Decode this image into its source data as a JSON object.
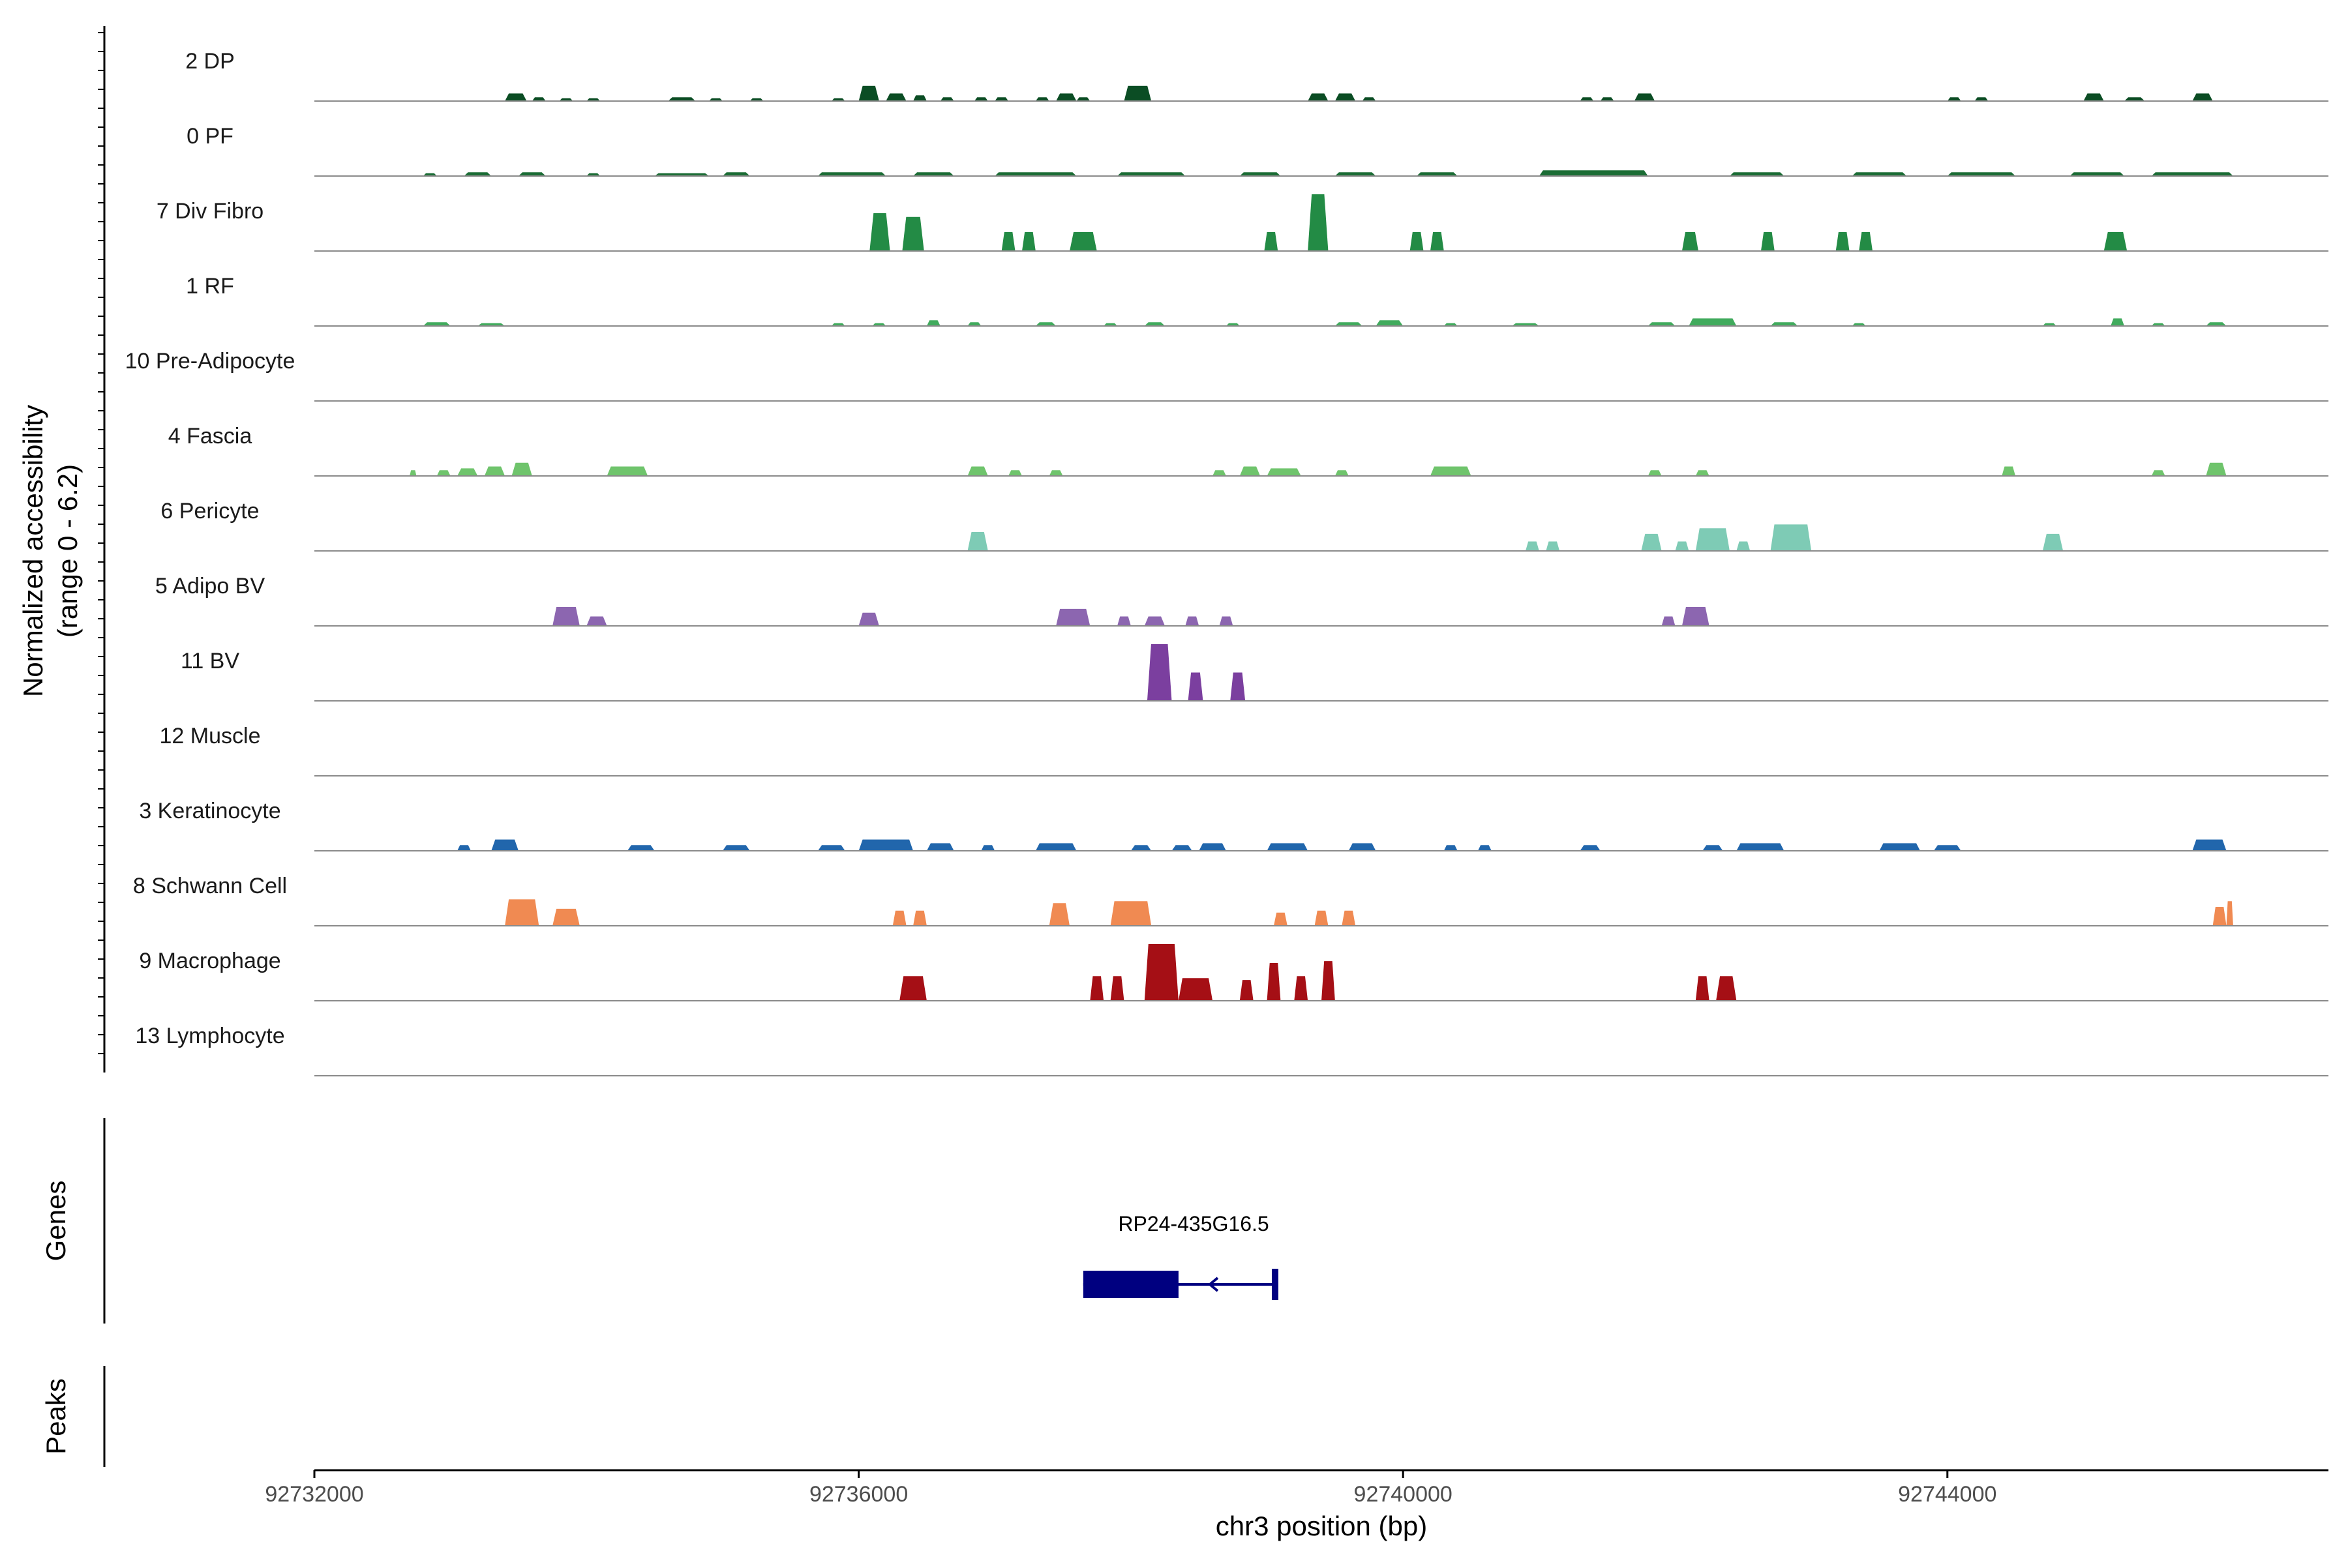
{
  "chart_data": {
    "type": "area",
    "x_axis": {
      "label": "chr3 position (bp)",
      "range": [
        92732000,
        92746800
      ],
      "ticks": [
        92732000,
        92736000,
        92740000,
        92744000
      ],
      "tick_labels": [
        "92732000",
        "92736000",
        "92740000",
        "92744000"
      ]
    },
    "y_axis": {
      "label_line1": "Normalized accessibility",
      "label_line2": "(range 0 - 6.2)",
      "range": [
        0,
        6.2
      ]
    },
    "tracks": [
      {
        "name": "2 DP",
        "color": "#0b4d24",
        "peaks": [
          [
            92733400,
            92733560,
            0.4
          ],
          [
            92733600,
            92733700,
            0.2
          ],
          [
            92733800,
            92733900,
            0.15
          ],
          [
            92734000,
            92734100,
            0.15
          ],
          [
            92734600,
            92734800,
            0.2
          ],
          [
            92734900,
            92735000,
            0.15
          ],
          [
            92735200,
            92735300,
            0.15
          ],
          [
            92735800,
            92735900,
            0.15
          ],
          [
            92736000,
            92736150,
            0.8
          ],
          [
            92736200,
            92736350,
            0.4
          ],
          [
            92736400,
            92736500,
            0.3
          ],
          [
            92736600,
            92736700,
            0.2
          ],
          [
            92736850,
            92736950,
            0.2
          ],
          [
            92737000,
            92737100,
            0.2
          ],
          [
            92737300,
            92737400,
            0.2
          ],
          [
            92737450,
            92737600,
            0.4
          ],
          [
            92737600,
            92737700,
            0.2
          ],
          [
            92737950,
            92738150,
            0.8
          ],
          [
            92739300,
            92739450,
            0.4
          ],
          [
            92739500,
            92739650,
            0.4
          ],
          [
            92739700,
            92739800,
            0.2
          ],
          [
            92741300,
            92741400,
            0.2
          ],
          [
            92741450,
            92741550,
            0.2
          ],
          [
            92741700,
            92741850,
            0.4
          ],
          [
            92744000,
            92744100,
            0.2
          ],
          [
            92744200,
            92744300,
            0.2
          ],
          [
            92745000,
            92745150,
            0.4
          ],
          [
            92745300,
            92745450,
            0.2
          ],
          [
            92745800,
            92745950,
            0.4
          ]
        ]
      },
      {
        "name": "0 PF",
        "color": "#1b6d35",
        "peaks": [
          [
            92732800,
            92732900,
            0.15
          ],
          [
            92733100,
            92733300,
            0.2
          ],
          [
            92733500,
            92733700,
            0.2
          ],
          [
            92734000,
            92734100,
            0.15
          ],
          [
            92734500,
            92734900,
            0.15
          ],
          [
            92735000,
            92735200,
            0.2
          ],
          [
            92735700,
            92736200,
            0.2
          ],
          [
            92736400,
            92736700,
            0.2
          ],
          [
            92737000,
            92737600,
            0.2
          ],
          [
            92737900,
            92738400,
            0.2
          ],
          [
            92738800,
            92739100,
            0.2
          ],
          [
            92739500,
            92739800,
            0.2
          ],
          [
            92740100,
            92740400,
            0.2
          ],
          [
            92741000,
            92741800,
            0.3
          ],
          [
            92742400,
            92742800,
            0.2
          ],
          [
            92743300,
            92743700,
            0.2
          ],
          [
            92744000,
            92744500,
            0.2
          ],
          [
            92744900,
            92745300,
            0.2
          ],
          [
            92745500,
            92746100,
            0.2
          ]
        ]
      },
      {
        "name": "7 Div Fibro",
        "color": "#238b45",
        "peaks": [
          [
            92736080,
            92736230,
            2.0
          ],
          [
            92736320,
            92736480,
            1.8
          ],
          [
            92737050,
            92737150,
            1.0
          ],
          [
            92737200,
            92737300,
            1.0
          ],
          [
            92737550,
            92737750,
            1.0
          ],
          [
            92738980,
            92739080,
            1.0
          ],
          [
            92739300,
            92739450,
            3.0
          ],
          [
            92740050,
            92740150,
            1.0
          ],
          [
            92740200,
            92740300,
            1.0
          ],
          [
            92742050,
            92742170,
            1.0
          ],
          [
            92742630,
            92742730,
            1.0
          ],
          [
            92743180,
            92743280,
            1.0
          ],
          [
            92743350,
            92743450,
            1.0
          ],
          [
            92745150,
            92745320,
            1.0
          ]
        ]
      },
      {
        "name": "1 RF",
        "color": "#41ab5d",
        "peaks": [
          [
            92732800,
            92733000,
            0.2
          ],
          [
            92733200,
            92733400,
            0.15
          ],
          [
            92735800,
            92735900,
            0.15
          ],
          [
            92736100,
            92736200,
            0.15
          ],
          [
            92736500,
            92736600,
            0.3
          ],
          [
            92736800,
            92736900,
            0.2
          ],
          [
            92737300,
            92737450,
            0.2
          ],
          [
            92737800,
            92737900,
            0.15
          ],
          [
            92738100,
            92738250,
            0.2
          ],
          [
            92738700,
            92738800,
            0.15
          ],
          [
            92739500,
            92739700,
            0.2
          ],
          [
            92739800,
            92740000,
            0.3
          ],
          [
            92740300,
            92740400,
            0.15
          ],
          [
            92740800,
            92741000,
            0.15
          ],
          [
            92741800,
            92742000,
            0.2
          ],
          [
            92742100,
            92742450,
            0.4
          ],
          [
            92742700,
            92742900,
            0.2
          ],
          [
            92743300,
            92743400,
            0.15
          ],
          [
            92744700,
            92744800,
            0.15
          ],
          [
            92745200,
            92745300,
            0.4
          ],
          [
            92745500,
            92745600,
            0.15
          ],
          [
            92745900,
            92746050,
            0.2
          ]
        ]
      },
      {
        "name": "10 Pre-Adipocyte",
        "color": "#4fb35f",
        "peaks": []
      },
      {
        "name": "4 Fascia",
        "color": "#6fc46c",
        "peaks": [
          [
            92732700,
            92732750,
            0.3
          ],
          [
            92732900,
            92733000,
            0.3
          ],
          [
            92733050,
            92733200,
            0.4
          ],
          [
            92733250,
            92733400,
            0.5
          ],
          [
            92733450,
            92733600,
            0.7
          ],
          [
            92734150,
            92734450,
            0.5
          ],
          [
            92736800,
            92736950,
            0.5
          ],
          [
            92737100,
            92737200,
            0.3
          ],
          [
            92737400,
            92737500,
            0.3
          ],
          [
            92738600,
            92738700,
            0.3
          ],
          [
            92738800,
            92738950,
            0.5
          ],
          [
            92739000,
            92739250,
            0.4
          ],
          [
            92739500,
            92739600,
            0.3
          ],
          [
            92740200,
            92740500,
            0.5
          ],
          [
            92741800,
            92741900,
            0.3
          ],
          [
            92742150,
            92742250,
            0.3
          ],
          [
            92744400,
            92744500,
            0.5
          ],
          [
            92745500,
            92745600,
            0.3
          ],
          [
            92745900,
            92746050,
            0.7
          ]
        ]
      },
      {
        "name": "6 Pericyte",
        "color": "#7ecbb5",
        "peaks": [
          [
            92736800,
            92736950,
            1.0
          ],
          [
            92740900,
            92741000,
            0.5
          ],
          [
            92741050,
            92741150,
            0.5
          ],
          [
            92741750,
            92741900,
            0.9
          ],
          [
            92742000,
            92742100,
            0.5
          ],
          [
            92742150,
            92742400,
            1.2
          ],
          [
            92742450,
            92742550,
            0.5
          ],
          [
            92742700,
            92743000,
            1.4
          ],
          [
            92744700,
            92744850,
            0.9
          ]
        ]
      },
      {
        "name": "5 Adipo BV",
        "color": "#8c66b0",
        "peaks": [
          [
            92733750,
            92733950,
            1.0
          ],
          [
            92734000,
            92734150,
            0.5
          ],
          [
            92736000,
            92736150,
            0.7
          ],
          [
            92737450,
            92737700,
            0.9
          ],
          [
            92737900,
            92738000,
            0.5
          ],
          [
            92738100,
            92738250,
            0.5
          ],
          [
            92738400,
            92738500,
            0.5
          ],
          [
            92738650,
            92738750,
            0.5
          ],
          [
            92741900,
            92742000,
            0.5
          ],
          [
            92742050,
            92742250,
            1.0
          ]
        ]
      },
      {
        "name": "11 BV",
        "color": "#7b3f9f",
        "peaks": [
          [
            92738120,
            92738300,
            3.0
          ],
          [
            92738420,
            92738530,
            1.5
          ],
          [
            92738730,
            92738840,
            1.5
          ]
        ]
      },
      {
        "name": "12 Muscle",
        "color": "#6a51a3",
        "peaks": []
      },
      {
        "name": "3 Keratinocyte",
        "color": "#2166ac",
        "peaks": [
          [
            92733050,
            92733150,
            0.3
          ],
          [
            92733300,
            92733500,
            0.6
          ],
          [
            92734300,
            92734500,
            0.3
          ],
          [
            92735000,
            92735200,
            0.3
          ],
          [
            92735700,
            92735900,
            0.3
          ],
          [
            92736000,
            92736400,
            0.6
          ],
          [
            92736500,
            92736700,
            0.4
          ],
          [
            92736900,
            92737000,
            0.3
          ],
          [
            92737300,
            92737600,
            0.4
          ],
          [
            92738000,
            92738150,
            0.3
          ],
          [
            92738300,
            92738450,
            0.3
          ],
          [
            92738500,
            92738700,
            0.4
          ],
          [
            92739000,
            92739300,
            0.4
          ],
          [
            92739600,
            92739800,
            0.4
          ],
          [
            92740300,
            92740400,
            0.3
          ],
          [
            92740550,
            92740650,
            0.3
          ],
          [
            92741300,
            92741450,
            0.3
          ],
          [
            92742200,
            92742350,
            0.3
          ],
          [
            92742450,
            92742800,
            0.4
          ],
          [
            92743500,
            92743800,
            0.4
          ],
          [
            92743900,
            92744100,
            0.3
          ],
          [
            92745800,
            92746050,
            0.6
          ]
        ]
      },
      {
        "name": "8 Schwann Cell",
        "color": "#f08a52",
        "peaks": [
          [
            92733400,
            92733650,
            1.4
          ],
          [
            92733750,
            92733950,
            0.9
          ],
          [
            92736250,
            92736350,
            0.8
          ],
          [
            92736400,
            92736500,
            0.8
          ],
          [
            92737400,
            92737550,
            1.2
          ],
          [
            92737850,
            92738150,
            1.3
          ],
          [
            92739050,
            92739150,
            0.7
          ],
          [
            92739350,
            92739450,
            0.8
          ],
          [
            92739550,
            92739650,
            0.8
          ],
          [
            92745950,
            92746050,
            1.0
          ],
          [
            92746050,
            92746100,
            1.3
          ]
        ]
      },
      {
        "name": "9 Macrophage",
        "color": "#a50f15",
        "peaks": [
          [
            92736300,
            92736500,
            1.3
          ],
          [
            92737700,
            92737800,
            1.3
          ],
          [
            92737850,
            92737950,
            1.3
          ],
          [
            92738100,
            92738350,
            3.0
          ],
          [
            92738350,
            92738600,
            1.2
          ],
          [
            92738800,
            92738900,
            1.1
          ],
          [
            92739000,
            92739100,
            2.0
          ],
          [
            92739200,
            92739300,
            1.3
          ],
          [
            92739400,
            92739500,
            2.1
          ],
          [
            92742150,
            92742250,
            1.3
          ],
          [
            92742300,
            92742450,
            1.3
          ]
        ]
      },
      {
        "name": "13 Lymphocyte",
        "color": "#cb181d",
        "peaks": []
      }
    ],
    "genes_panel": {
      "label": "Genes",
      "genes": [
        {
          "name": "RP24-435G16.5",
          "start": 92737650,
          "end": 92739080,
          "exon_block": [
            92737650,
            92738350
          ],
          "tss_tick": 92739050,
          "strand": "-",
          "color": "#000080"
        }
      ]
    },
    "peaks_panel": {
      "label": "Peaks"
    }
  }
}
